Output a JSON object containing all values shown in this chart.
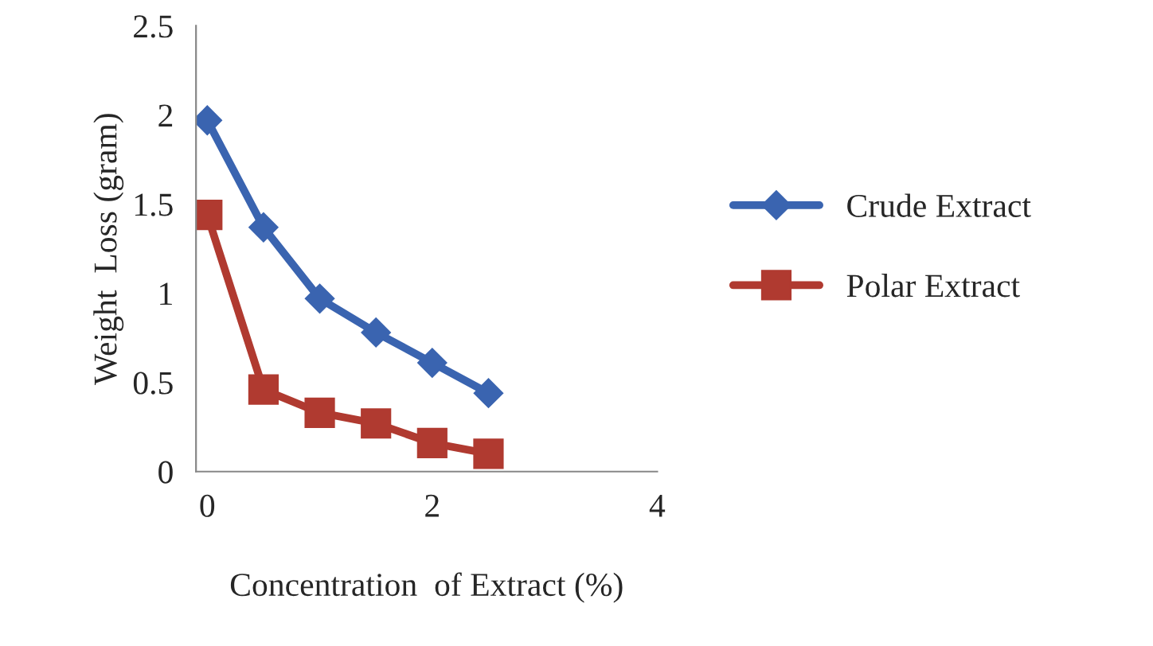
{
  "chart_data": {
    "type": "line",
    "xlabel": "Concentration  of Extract (%)",
    "ylabel": "Weight  Loss (gram)",
    "x": [
      0,
      0.5,
      1,
      1.5,
      2,
      2.5
    ],
    "series": [
      {
        "name": "Crude Extract",
        "color": "#3a64b0",
        "marker": "diamond",
        "values": [
          1.97,
          1.37,
          0.97,
          0.78,
          0.61,
          0.44
        ]
      },
      {
        "name": "Polar Extract",
        "color": "#b03a30",
        "marker": "square",
        "values": [
          1.44,
          0.46,
          0.33,
          0.27,
          0.16,
          0.1
        ]
      }
    ],
    "xlim": [
      -0.1,
      4
    ],
    "xticks": [
      0,
      2,
      4
    ],
    "ylim": [
      0,
      2.5
    ],
    "yticks": [
      0,
      0.5,
      1,
      1.5,
      2,
      2.5
    ],
    "grid": false,
    "legend": "right",
    "line_style": "solid"
  }
}
